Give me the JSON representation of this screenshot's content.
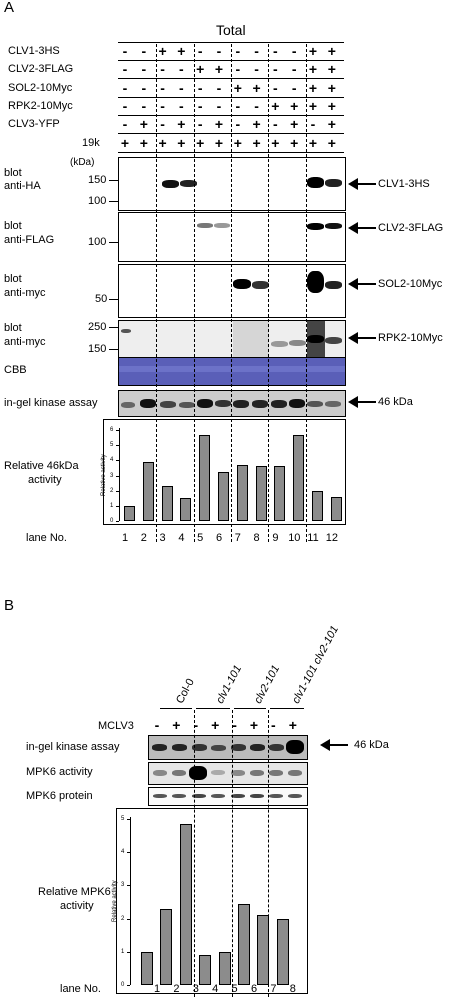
{
  "panelA": {
    "label": "A",
    "header": "Total",
    "rows": [
      {
        "label": "CLV1-3HS",
        "signs": [
          "-",
          "-",
          "+",
          "+",
          "-",
          "-",
          "-",
          "-",
          "-",
          "-",
          "+",
          "+"
        ]
      },
      {
        "label": "CLV2-3FLAG",
        "signs": [
          "-",
          "-",
          "-",
          "-",
          "+",
          "+",
          "-",
          "-",
          "-",
          "-",
          "+",
          "+"
        ]
      },
      {
        "label": "SOL2-10Myc",
        "signs": [
          "-",
          "-",
          "-",
          "-",
          "-",
          "-",
          "+",
          "+",
          "-",
          "-",
          "+",
          "+"
        ]
      },
      {
        "label": "RPK2-10Myc",
        "signs": [
          "-",
          "-",
          "-",
          "-",
          "-",
          "-",
          "-",
          "-",
          "+",
          "+",
          "+",
          "+"
        ]
      },
      {
        "label": "CLV3-YFP",
        "signs": [
          "-",
          "+",
          "-",
          "+",
          "-",
          "+",
          "-",
          "+",
          "-",
          "+",
          "-",
          "+"
        ]
      },
      {
        "label": "19k",
        "signs": [
          "+",
          "+",
          "+",
          "+",
          "+",
          "+",
          "+",
          "+",
          "+",
          "+",
          "+",
          "+"
        ]
      }
    ],
    "kda_label": "(kDa)",
    "blots": [
      {
        "label1": "blot",
        "label2": "anti-HA",
        "markers": [
          "150",
          "100"
        ],
        "target": "CLV1-3HS"
      },
      {
        "label1": "blot",
        "label2": "anti-FLAG",
        "markers": [
          "100"
        ],
        "target": "CLV2-3FLAG"
      },
      {
        "label1": "blot",
        "label2": "anti-myc",
        "markers": [
          "50"
        ],
        "target": "SOL2-10Myc"
      },
      {
        "label1": "blot",
        "label2": "anti-myc",
        "markers": [
          "250",
          "150"
        ],
        "target": "RPK2-10Myc"
      }
    ],
    "cbb_label": "CBB",
    "kinase_label": "in-gel kinase assay",
    "kinase_target": "46 kDa",
    "activity_label1": "Relative 46kDa",
    "activity_label2": "activity",
    "chart_data": {
      "type": "bar",
      "categories": [
        "1",
        "2",
        "3",
        "4",
        "5",
        "6",
        "7",
        "8",
        "9",
        "10",
        "11",
        "12"
      ],
      "values": [
        1.0,
        3.9,
        2.3,
        1.5,
        5.7,
        3.2,
        3.7,
        3.6,
        3.6,
        5.7,
        2.0,
        1.6
      ],
      "ylabel": "Relative activity",
      "ylim": [
        0,
        6
      ],
      "yticks": [
        "0",
        "1",
        "2",
        "3",
        "4",
        "5",
        "6"
      ]
    },
    "lane_label": "lane No.",
    "lanes": [
      "1",
      "2",
      "3",
      "4",
      "5",
      "6",
      "7",
      "8",
      "9",
      "10",
      "11",
      "12"
    ]
  },
  "panelB": {
    "label": "B",
    "genotypes": [
      "Col-0",
      "clv1-101",
      "clv2-101",
      "clv1-101 clv2-101"
    ],
    "mclv3_label": "MCLV3",
    "mclv3_signs": [
      "-",
      "+",
      "-",
      "+",
      "-",
      "+",
      "-",
      "+"
    ],
    "kinase_label": "in-gel kinase assay",
    "kinase_target": "46 kDa",
    "mpk6_activity_label": "MPK6 activity",
    "mpk6_protein_label": "MPK6 protein",
    "activity_label1": "Relative MPK6",
    "activity_label2": "activity",
    "chart_data": {
      "type": "bar",
      "categories": [
        "1",
        "2",
        "3",
        "4",
        "5",
        "6",
        "7",
        "8"
      ],
      "values": [
        1.0,
        2.3,
        4.85,
        0.9,
        1.0,
        2.45,
        2.1,
        2.0
      ],
      "ylabel": "Relative activity",
      "ylim": [
        0,
        5
      ],
      "yticks": [
        "0",
        "1",
        "2",
        "3",
        "4",
        "5"
      ]
    },
    "lane_label": "lane No.",
    "lanes": [
      "1",
      "2",
      "3",
      "4",
      "5",
      "6",
      "7",
      "8"
    ]
  }
}
